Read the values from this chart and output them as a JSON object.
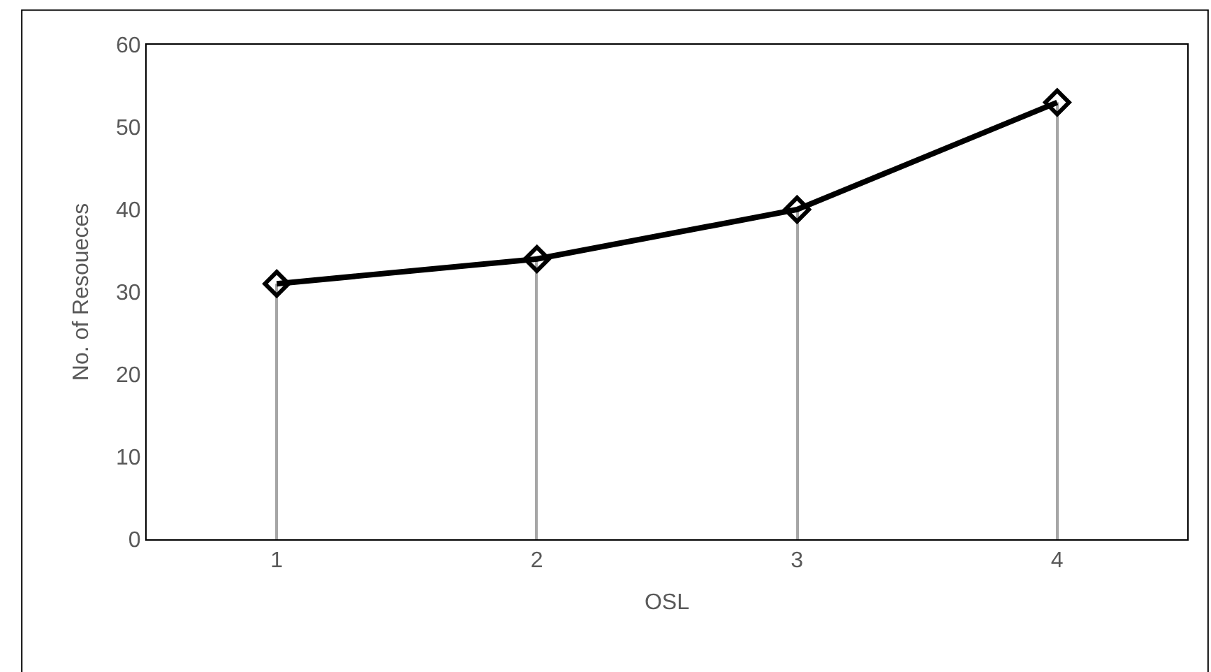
{
  "chart_data": {
    "type": "line",
    "xlabel": "OSL",
    "ylabel": "No. of Resoueces",
    "categories": [
      "1",
      "2",
      "3",
      "4"
    ],
    "series": [
      {
        "type": "bar",
        "color": "#a6a6a6",
        "values": [
          31,
          34,
          40,
          53
        ]
      },
      {
        "color": "#000000",
        "values": [
          31,
          34,
          40,
          53
        ]
      }
    ],
    "ylim": [
      0,
      60
    ],
    "yticks": [
      0,
      10,
      20,
      30,
      40,
      50,
      60
    ],
    "marker": "diamond",
    "line_style": "solid"
  }
}
